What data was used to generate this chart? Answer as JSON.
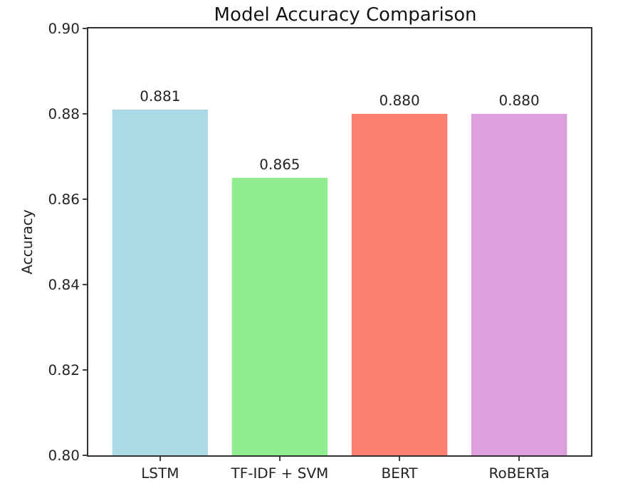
{
  "chart_data": {
    "type": "bar",
    "title": "Model Accuracy Comparison",
    "ylabel": "Accuracy",
    "categories": [
      "LSTM",
      "TF-IDF + SVM",
      "BERT",
      "RoBERTa"
    ],
    "values": [
      0.881,
      0.865,
      0.88,
      0.88
    ],
    "colors": [
      "#add8e6",
      "#90ee90",
      "#fa8072",
      "#dda0dd"
    ],
    "value_labels": [
      "0.881",
      "0.865",
      "0.880",
      "0.880"
    ],
    "ylim": [
      0.8,
      0.9
    ],
    "yticks": [
      {
        "value": 0.8,
        "label": "0.80"
      },
      {
        "value": 0.82,
        "label": "0.82"
      },
      {
        "value": 0.84,
        "label": "0.84"
      },
      {
        "value": 0.86,
        "label": "0.86"
      },
      {
        "value": 0.88,
        "label": "0.88"
      },
      {
        "value": 0.9,
        "label": "0.90"
      }
    ],
    "grid": false
  }
}
